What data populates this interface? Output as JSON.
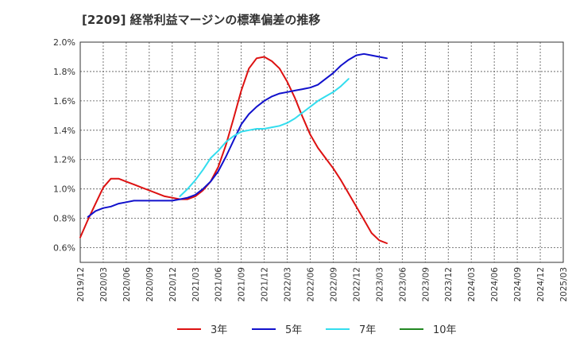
{
  "chart_data": {
    "type": "line",
    "title": "[2209]  経常利益マージンの標準偏差の推移",
    "xlabel": "",
    "ylabel": "",
    "ylim": [
      0.5,
      2.0
    ],
    "yticks": [
      "0.6%",
      "0.8%",
      "1.0%",
      "1.2%",
      "1.4%",
      "1.6%",
      "1.8%",
      "2.0%"
    ],
    "ytick_values": [
      0.6,
      0.8,
      1.0,
      1.2,
      1.4,
      1.6,
      1.8,
      2.0
    ],
    "x_categories": [
      "2019/12",
      "2020/03",
      "2020/06",
      "2020/09",
      "2020/12",
      "2021/03",
      "2021/06",
      "2021/09",
      "2021/12",
      "2022/03",
      "2022/06",
      "2022/09",
      "2022/12",
      "2023/03",
      "2023/06",
      "2023/09",
      "2023/12",
      "2024/03",
      "2024/06",
      "2024/09",
      "2024/12",
      "2025/03"
    ],
    "grid": true,
    "legend_position": "bottom",
    "series": [
      {
        "name": "3年",
        "color": "#dd1111",
        "start_index": 0,
        "values": [
          0.67,
          0.79,
          0.9,
          1.01,
          1.07,
          1.07,
          1.05,
          1.03,
          1.01,
          0.99,
          0.97,
          0.95,
          0.94,
          0.93,
          0.93,
          0.95,
          0.99,
          1.05,
          1.15,
          1.3,
          1.48,
          1.67,
          1.82,
          1.89,
          1.9,
          1.87,
          1.82,
          1.73,
          1.62,
          1.49,
          1.37,
          1.28,
          1.21,
          1.14,
          1.06,
          0.97,
          0.88,
          0.79,
          0.7,
          0.65,
          0.63
        ]
      },
      {
        "name": "5年",
        "color": "#1111cc",
        "start_index": 1,
        "values": [
          0.81,
          0.85,
          0.87,
          0.88,
          0.9,
          0.91,
          0.92,
          0.92,
          0.92,
          0.92,
          0.92,
          0.92,
          0.93,
          0.94,
          0.96,
          1.0,
          1.05,
          1.12,
          1.22,
          1.33,
          1.44,
          1.51,
          1.56,
          1.6,
          1.63,
          1.65,
          1.66,
          1.67,
          1.68,
          1.69,
          1.71,
          1.75,
          1.79,
          1.84,
          1.88,
          1.91,
          1.92,
          1.91,
          1.9,
          1.89
        ]
      },
      {
        "name": "7年",
        "color": "#33ddee",
        "start_index": 13,
        "values": [
          0.95,
          1.0,
          1.06,
          1.13,
          1.21,
          1.26,
          1.32,
          1.36,
          1.39,
          1.4,
          1.41,
          1.41,
          1.42,
          1.43,
          1.45,
          1.48,
          1.52,
          1.56,
          1.6,
          1.63,
          1.66,
          1.7,
          1.75
        ]
      },
      {
        "name": "10年",
        "color": "#228822",
        "start_index": 0,
        "values": []
      }
    ]
  }
}
